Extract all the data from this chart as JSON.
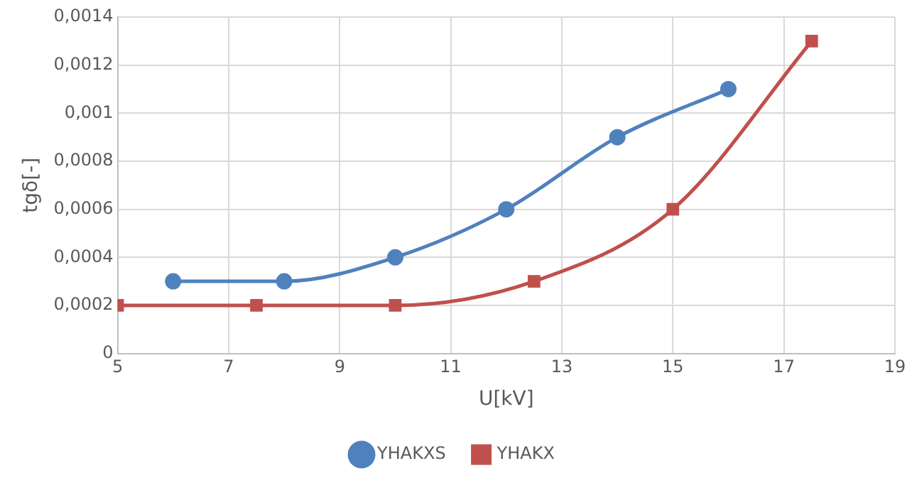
{
  "chart_data": {
    "type": "line",
    "xlabel": "U[kV]",
    "ylabel": "tgδ[-]",
    "xlim": [
      5,
      19
    ],
    "xticks": [
      5,
      7,
      9,
      11,
      13,
      15,
      17,
      19
    ],
    "ylim": [
      0,
      0.0014
    ],
    "yticks": [
      0,
      {
        "value": 0.0002,
        "label": "0,0002"
      },
      {
        "value": 0.0004,
        "label": "0,0004"
      },
      {
        "value": 0.0006,
        "label": "0,0006"
      },
      {
        "value": 0.0008,
        "label": "0,0008"
      },
      {
        "value": 0.001,
        "label": "0,001"
      },
      {
        "value": 0.0012,
        "label": "0,0012"
      },
      {
        "value": 0.0014,
        "label": "0,0014"
      }
    ],
    "grid": true,
    "legend": "bottom",
    "series": [
      {
        "name": "YHAKXS",
        "color": "#4f81bd",
        "marker": "circle",
        "x": [
          6,
          8,
          10,
          12,
          14,
          16
        ],
        "values": [
          0.0003,
          0.0003,
          0.0004,
          0.0006,
          0.0009,
          0.0011
        ]
      },
      {
        "name": "YHAKX",
        "color": "#c0504d",
        "marker": "square",
        "x": [
          5,
          7.5,
          10,
          12.5,
          15,
          17.5
        ],
        "values": [
          0.0002,
          0.0002,
          0.0002,
          0.0003,
          0.0006,
          0.0013
        ]
      }
    ]
  }
}
